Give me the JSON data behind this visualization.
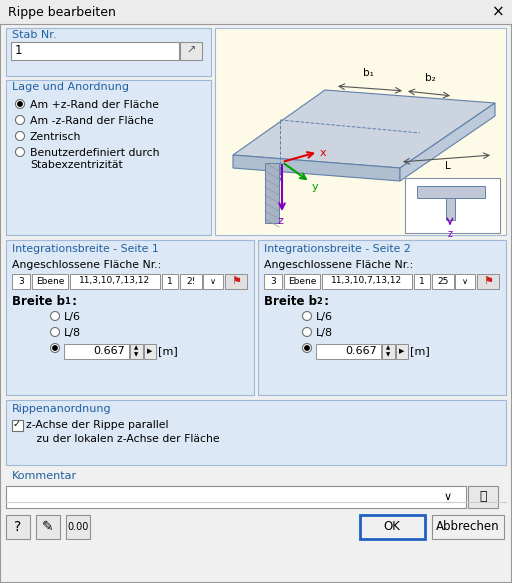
{
  "title": "Rippe bearbeiten",
  "bg_color": "#f0f0f0",
  "dialog_border": "#999999",
  "section_bg": "#dce8f5",
  "section_border": "#a0b8d8",
  "input_bg": "#ffffff",
  "text_color": "#000000",
  "blue_text": "#2060a0",
  "sketch_bg": "#fefae8",
  "title_bar_bg": "#f0f0f0",
  "stab_label": "Stab Nr.",
  "stab_value": "1",
  "lage_title": "Lage und Anordnung",
  "radio_options": [
    "Am +z-Rand der Fläche",
    "Am -z-Rand der Fläche",
    "Zentrisch",
    "Benutzerdefiniert durch"
  ],
  "radio_option_extra": "Stabexzentrizität",
  "radio_selected": 0,
  "integ1_title": "Integrationsbreite - Seite 1",
  "integ2_title": "Integrationsbreite - Seite 2",
  "angeschl_label": "Angeschlossene Fläche Nr.:",
  "field1_vals": [
    "3",
    "Ebene",
    "11,3,10,7,13,12",
    "1",
    "2!"
  ],
  "field2_vals": [
    "3",
    "Ebene",
    "11,3,10,7,13,12",
    "1",
    "25"
  ],
  "breite_value": "0.667",
  "unit": "[m]",
  "rippen_title": "Rippenanordnung",
  "rippen_line1": "z-Achse der Rippe parallel",
  "rippen_line2": "   zu der lokalen z-Achse der Fläche",
  "kommentar_label": "Kommentar",
  "btn_ok": "OK",
  "btn_cancel": "Abbrechen",
  "slab_color": "#ccd4e0",
  "slab_front_color": "#b0bfd0",
  "slab_right_color": "#bccadc",
  "rib_color": "#a8b4c4",
  "rib_hatch_color": "#889aaa",
  "axis_line": "#6080a8",
  "x_color": "#e00000",
  "y_color": "#00a000",
  "z_color": "#8000c0"
}
